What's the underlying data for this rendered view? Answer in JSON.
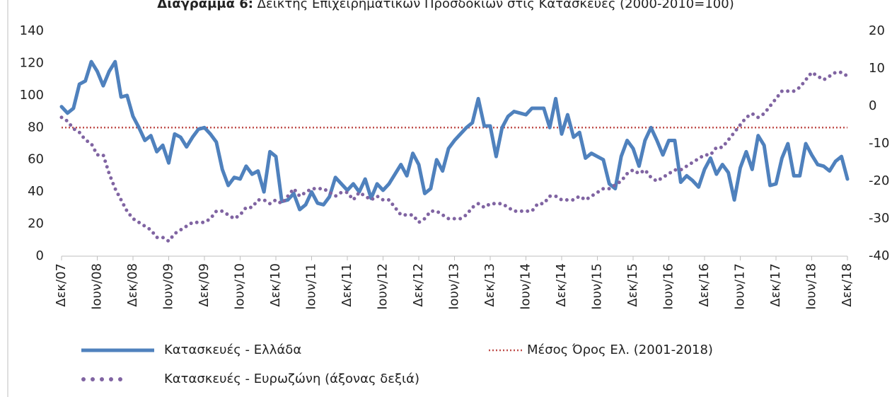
{
  "chart_data": {
    "type": "line",
    "title_prefix": "Διάγραμμα 6:",
    "title": "Δείκτης Επιχειρηματικών Προσδοκιών στις Κατασκευές (2000-2010=100)",
    "categories": [
      "Δεκ/07",
      null,
      null,
      null,
      null,
      null,
      "Ιουν/08",
      null,
      null,
      null,
      null,
      null,
      "Δεκ/08",
      null,
      null,
      null,
      null,
      null,
      "Ιουν/09",
      null,
      null,
      null,
      null,
      null,
      "Δεκ/09",
      null,
      null,
      null,
      null,
      null,
      "Ιουν/10",
      null,
      null,
      null,
      null,
      null,
      "Δεκ/10",
      null,
      null,
      null,
      null,
      null,
      "Ιουν/11",
      null,
      null,
      null,
      null,
      null,
      "Δεκ/11",
      null,
      null,
      null,
      null,
      null,
      "Ιουν/12",
      null,
      null,
      null,
      null,
      null,
      "Δεκ/12",
      null,
      null,
      null,
      null,
      null,
      "Ιουν/13",
      null,
      null,
      null,
      null,
      null,
      "Δεκ/13",
      null,
      null,
      null,
      null,
      null,
      "Ιουν/14",
      null,
      null,
      null,
      null,
      null,
      "Δεκ/14",
      null,
      null,
      null,
      null,
      null,
      "Ιουν/15",
      null,
      null,
      null,
      null,
      null,
      "Δεκ/15",
      null,
      null,
      null,
      null,
      null,
      "Ιουν/16",
      null,
      null,
      null,
      null,
      null,
      "Δεκ/16",
      null,
      null,
      null,
      null,
      null,
      "Ιουν/17",
      null,
      null,
      null,
      null,
      null,
      "Δεκ/17",
      null,
      null,
      null,
      null,
      null,
      "Ιουν/18",
      null,
      null,
      null,
      null,
      null,
      "Δεκ/18"
    ],
    "series": [
      {
        "name": "Κατασκευές  - Ελλάδα",
        "color": "#4f81bd",
        "style": "solid",
        "axis": "y",
        "values": [
          93,
          89,
          92,
          107,
          109,
          121,
          115,
          106,
          115,
          121,
          99,
          100,
          87,
          80,
          72,
          75,
          65,
          69,
          58,
          76,
          74,
          68,
          74,
          79,
          80,
          76,
          71,
          54,
          44,
          49,
          48,
          56,
          51,
          53,
          40,
          65,
          62,
          34,
          35,
          39,
          29,
          32,
          40,
          33,
          32,
          37,
          49,
          45,
          41,
          45,
          40,
          48,
          36,
          45,
          41,
          45,
          51,
          57,
          50,
          64,
          57,
          39,
          42,
          60,
          53,
          67,
          72,
          76,
          80,
          83,
          98,
          81,
          81,
          62,
          80,
          87,
          90,
          89,
          88,
          92,
          92,
          92,
          80,
          98,
          76,
          88,
          74,
          77,
          61,
          64,
          62,
          60,
          45,
          42,
          62,
          72,
          67,
          56,
          72,
          80,
          72,
          63,
          72,
          72,
          46,
          50,
          47,
          43,
          54,
          61,
          51,
          57,
          52,
          35,
          55,
          65,
          54,
          75,
          69,
          44,
          45,
          61,
          70,
          50,
          50,
          70,
          63,
          57,
          56,
          53,
          59,
          62,
          48
        ]
      },
      {
        "name": "Κατασκευές - Ευρωζώνη (άξονας δεξιά)",
        "color": "#8064a2",
        "style": "dots",
        "axis": "y2",
        "values": [
          -3,
          -4,
          -6,
          -7,
          -9,
          -10,
          -13,
          -13,
          -18,
          -22,
          -25,
          -28,
          -30,
          -31,
          -32,
          -33,
          -35,
          -35,
          -36,
          -34,
          -33,
          -32,
          -31,
          -31,
          -31,
          -30,
          -28,
          -28,
          -29,
          -30,
          -29,
          -27,
          -27,
          -25,
          -25,
          -26,
          -25,
          -26,
          -24,
          -22,
          -24,
          -23,
          -22,
          -22,
          -22,
          -23,
          -24,
          -23,
          -23,
          -25,
          -23,
          -24,
          -25,
          -24,
          -25,
          -25,
          -27,
          -29,
          -29,
          -29,
          -31,
          -30,
          -28,
          -28,
          -29,
          -30,
          -30,
          -30,
          -29,
          -27,
          -26,
          -27,
          -26,
          -26,
          -26,
          -27,
          -28,
          -28,
          -28,
          -28,
          -26,
          -26,
          -24,
          -24,
          -25,
          -25,
          -25,
          -24,
          -25,
          -24,
          -23,
          -22,
          -22,
          -21,
          -20,
          -18,
          -17,
          -18,
          -17,
          -19,
          -20,
          -19,
          -18,
          -17,
          -17,
          -16,
          -15,
          -14,
          -13,
          -13,
          -11,
          -11,
          -9,
          -7,
          -5,
          -3,
          -2,
          -3,
          -2,
          0,
          2,
          4,
          4,
          4,
          5,
          7,
          9,
          8,
          7,
          8,
          9,
          9,
          8
        ]
      }
    ],
    "reference_line": {
      "name": "Μέσος Όρος Ελ. (2001-2018)",
      "value": 80,
      "color": "#c0504d"
    },
    "ylim": [
      0,
      140
    ],
    "yticks": [
      0,
      20,
      40,
      60,
      80,
      100,
      120,
      140
    ],
    "y2lim": [
      -40,
      20
    ],
    "y2ticks": [
      -40,
      -30,
      -20,
      -10,
      0,
      10,
      20
    ]
  }
}
